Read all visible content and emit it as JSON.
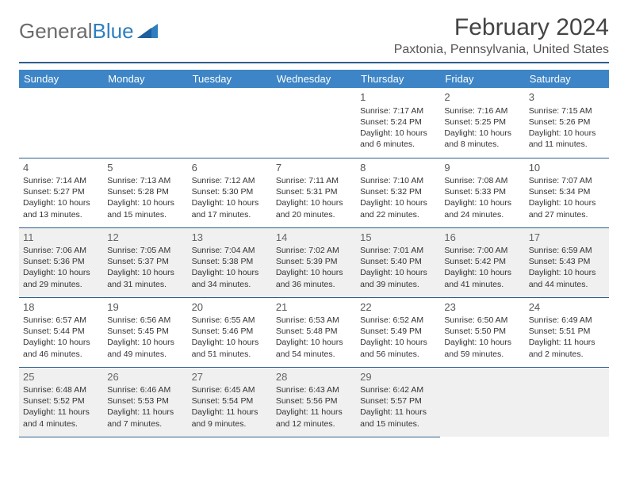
{
  "logo": {
    "part1": "General",
    "part2": "Blue"
  },
  "title": "February 2024",
  "location": "Paxtonia, Pennsylvania, United States",
  "colors": {
    "header_bg": "#3d85c6",
    "header_text": "#ffffff",
    "rule": "#2f5f8f",
    "shaded_bg": "#f0f0f0",
    "logo_gray": "#6b6b6b",
    "logo_blue": "#2f7fbf"
  },
  "weekdays": [
    "Sunday",
    "Monday",
    "Tuesday",
    "Wednesday",
    "Thursday",
    "Friday",
    "Saturday"
  ],
  "first_weekday_index": 4,
  "days": [
    {
      "n": 1,
      "sunrise": "7:17 AM",
      "sunset": "5:24 PM",
      "daylight": "10 hours and 6 minutes."
    },
    {
      "n": 2,
      "sunrise": "7:16 AM",
      "sunset": "5:25 PM",
      "daylight": "10 hours and 8 minutes."
    },
    {
      "n": 3,
      "sunrise": "7:15 AM",
      "sunset": "5:26 PM",
      "daylight": "10 hours and 11 minutes."
    },
    {
      "n": 4,
      "sunrise": "7:14 AM",
      "sunset": "5:27 PM",
      "daylight": "10 hours and 13 minutes."
    },
    {
      "n": 5,
      "sunrise": "7:13 AM",
      "sunset": "5:28 PM",
      "daylight": "10 hours and 15 minutes."
    },
    {
      "n": 6,
      "sunrise": "7:12 AM",
      "sunset": "5:30 PM",
      "daylight": "10 hours and 17 minutes."
    },
    {
      "n": 7,
      "sunrise": "7:11 AM",
      "sunset": "5:31 PM",
      "daylight": "10 hours and 20 minutes."
    },
    {
      "n": 8,
      "sunrise": "7:10 AM",
      "sunset": "5:32 PM",
      "daylight": "10 hours and 22 minutes."
    },
    {
      "n": 9,
      "sunrise": "7:08 AM",
      "sunset": "5:33 PM",
      "daylight": "10 hours and 24 minutes."
    },
    {
      "n": 10,
      "sunrise": "7:07 AM",
      "sunset": "5:34 PM",
      "daylight": "10 hours and 27 minutes."
    },
    {
      "n": 11,
      "sunrise": "7:06 AM",
      "sunset": "5:36 PM",
      "daylight": "10 hours and 29 minutes."
    },
    {
      "n": 12,
      "sunrise": "7:05 AM",
      "sunset": "5:37 PM",
      "daylight": "10 hours and 31 minutes."
    },
    {
      "n": 13,
      "sunrise": "7:04 AM",
      "sunset": "5:38 PM",
      "daylight": "10 hours and 34 minutes."
    },
    {
      "n": 14,
      "sunrise": "7:02 AM",
      "sunset": "5:39 PM",
      "daylight": "10 hours and 36 minutes."
    },
    {
      "n": 15,
      "sunrise": "7:01 AM",
      "sunset": "5:40 PM",
      "daylight": "10 hours and 39 minutes."
    },
    {
      "n": 16,
      "sunrise": "7:00 AM",
      "sunset": "5:42 PM",
      "daylight": "10 hours and 41 minutes."
    },
    {
      "n": 17,
      "sunrise": "6:59 AM",
      "sunset": "5:43 PM",
      "daylight": "10 hours and 44 minutes."
    },
    {
      "n": 18,
      "sunrise": "6:57 AM",
      "sunset": "5:44 PM",
      "daylight": "10 hours and 46 minutes."
    },
    {
      "n": 19,
      "sunrise": "6:56 AM",
      "sunset": "5:45 PM",
      "daylight": "10 hours and 49 minutes."
    },
    {
      "n": 20,
      "sunrise": "6:55 AM",
      "sunset": "5:46 PM",
      "daylight": "10 hours and 51 minutes."
    },
    {
      "n": 21,
      "sunrise": "6:53 AM",
      "sunset": "5:48 PM",
      "daylight": "10 hours and 54 minutes."
    },
    {
      "n": 22,
      "sunrise": "6:52 AM",
      "sunset": "5:49 PM",
      "daylight": "10 hours and 56 minutes."
    },
    {
      "n": 23,
      "sunrise": "6:50 AM",
      "sunset": "5:50 PM",
      "daylight": "10 hours and 59 minutes."
    },
    {
      "n": 24,
      "sunrise": "6:49 AM",
      "sunset": "5:51 PM",
      "daylight": "11 hours and 2 minutes."
    },
    {
      "n": 25,
      "sunrise": "6:48 AM",
      "sunset": "5:52 PM",
      "daylight": "11 hours and 4 minutes."
    },
    {
      "n": 26,
      "sunrise": "6:46 AM",
      "sunset": "5:53 PM",
      "daylight": "11 hours and 7 minutes."
    },
    {
      "n": 27,
      "sunrise": "6:45 AM",
      "sunset": "5:54 PM",
      "daylight": "11 hours and 9 minutes."
    },
    {
      "n": 28,
      "sunrise": "6:43 AM",
      "sunset": "5:56 PM",
      "daylight": "11 hours and 12 minutes."
    },
    {
      "n": 29,
      "sunrise": "6:42 AM",
      "sunset": "5:57 PM",
      "daylight": "11 hours and 15 minutes."
    }
  ],
  "labels": {
    "sunrise": "Sunrise:",
    "sunset": "Sunset:",
    "daylight": "Daylight:"
  },
  "shaded_rows": [
    2,
    4
  ]
}
